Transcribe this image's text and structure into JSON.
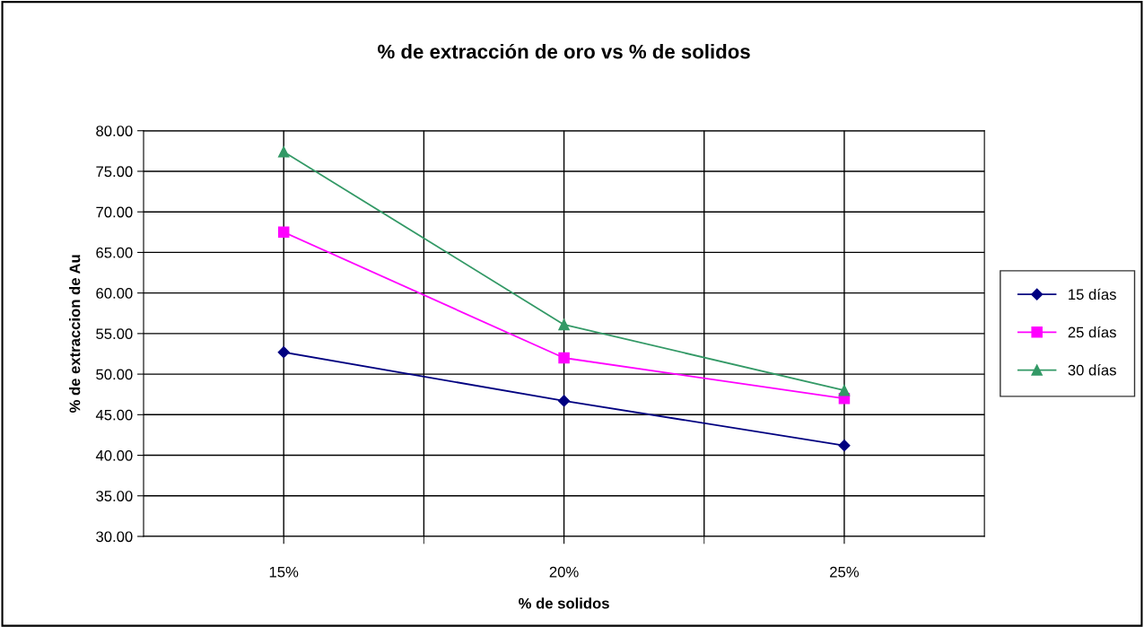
{
  "chart_data": {
    "type": "line",
    "title": "% de extracción de oro vs % de solidos",
    "xlabel": "% de solidos",
    "ylabel": "% de extraccion de Au",
    "categories": [
      "15%",
      "20%",
      "25%"
    ],
    "series": [
      {
        "name": "15 días",
        "color": "#000080",
        "marker": "diamond",
        "values": [
          52.7,
          46.7,
          41.2
        ]
      },
      {
        "name": "25 días",
        "color": "#ff00ff",
        "marker": "square",
        "values": [
          67.5,
          52.0,
          47.0
        ]
      },
      {
        "name": "30 días",
        "color": "#339966",
        "marker": "triangle",
        "values": [
          77.4,
          56.1,
          48.0
        ]
      }
    ],
    "ylim": [
      30,
      80
    ],
    "yticks": [
      {
        "value": 30,
        "label": "30.00"
      },
      {
        "value": 35,
        "label": "35.00"
      },
      {
        "value": 40,
        "label": "40.00"
      },
      {
        "value": 45,
        "label": "45.00"
      },
      {
        "value": 50,
        "label": "50.00"
      },
      {
        "value": 55,
        "label": "55.00"
      },
      {
        "value": 60,
        "label": "60.00"
      },
      {
        "value": 65,
        "label": "65.00"
      },
      {
        "value": 70,
        "label": "70.00"
      },
      {
        "value": 75,
        "label": "75.00"
      },
      {
        "value": 80,
        "label": "80.00"
      }
    ],
    "grid": true,
    "legend": "right",
    "line_style": "solid"
  }
}
